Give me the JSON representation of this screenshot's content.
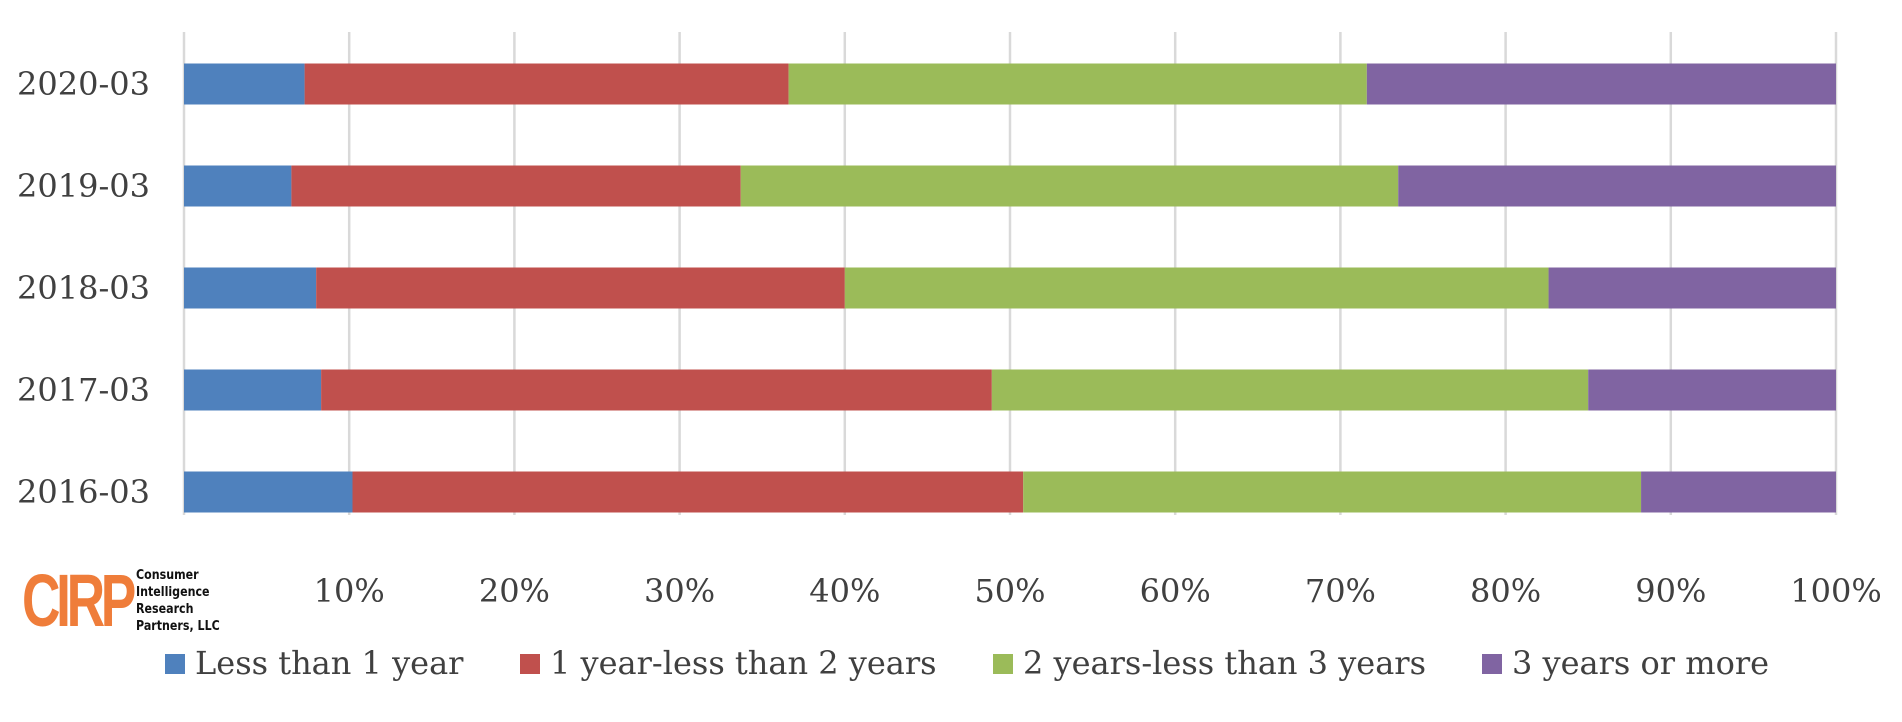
{
  "chart_data": {
    "type": "bar",
    "orientation": "horizontal",
    "stacked": "percent",
    "title": "",
    "xlabel": "",
    "ylabel": "",
    "categories": [
      "2020-03",
      "2019-03",
      "2018-03",
      "2017-03",
      "2016-03"
    ],
    "x_ticks": [
      "",
      "10%",
      "20%",
      "30%",
      "40%",
      "50%",
      "60%",
      "70%",
      "80%",
      "90%",
      "100%"
    ],
    "xlim": [
      0,
      100
    ],
    "grid": true,
    "legend_position": "bottom",
    "series": [
      {
        "name": "Less than 1 year",
        "color": "#4f81bd",
        "values": [
          7.3,
          6.5,
          8.0,
          8.3,
          10.2
        ]
      },
      {
        "name": "1 year-less than 2 years",
        "color": "#c0504d",
        "values": [
          29.3,
          27.2,
          32.0,
          40.6,
          40.6
        ]
      },
      {
        "name": "2 years-less than 3 years",
        "color": "#9bbb59",
        "values": [
          35.0,
          39.8,
          42.6,
          36.1,
          37.4
        ]
      },
      {
        "name": "3 years or more",
        "color": "#8064a2",
        "values": [
          28.4,
          26.5,
          17.4,
          15.0,
          11.8
        ]
      }
    ]
  },
  "logo": {
    "mark": "CIRP",
    "company": "Consumer\nIntelligence\nResearch\nPartners, LLC"
  }
}
